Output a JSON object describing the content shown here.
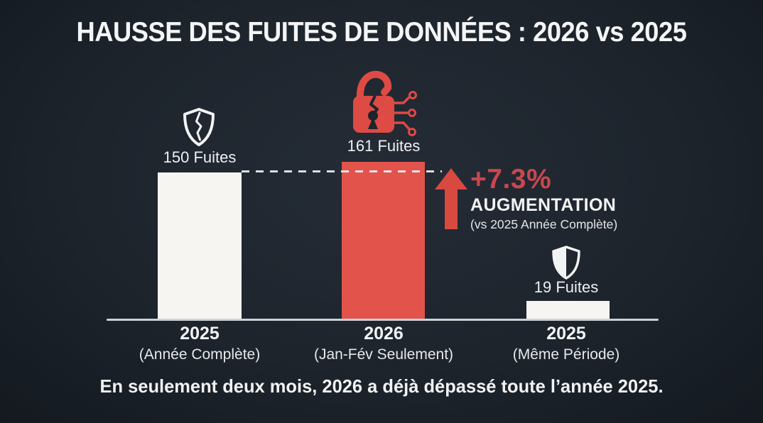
{
  "title": "HAUSSE DES FUITES DE DONNÉES : 2026 vs 2025",
  "caption": "En seulement deux mois, 2026 a déjà dépassé toute l’année 2025.",
  "colors": {
    "background": "#1d242c",
    "bar_white": "#f6f5f2",
    "bar_red": "#e2534b",
    "accent_red": "#c9474d",
    "text": "#eef0f2",
    "baseline": "#ced2d6"
  },
  "chart_data": {
    "type": "bar",
    "title": "HAUSSE DES FUITES DE DONNÉES : 2026 vs 2025",
    "categories": [
      "2025 (Année Complète)",
      "2026 (Jan-Fév Seulement)",
      "2025 (Même Période)"
    ],
    "values": [
      150,
      161,
      19
    ],
    "value_labels": [
      "150 Fuites",
      "161 Fuites",
      "19 Fuites"
    ],
    "bar_colors": [
      "#f6f5f2",
      "#e2534b",
      "#f6f5f2"
    ],
    "ylabel": "Fuites",
    "xlabel": "",
    "ylim": [
      0,
      165
    ],
    "grid": false,
    "legend": false,
    "reference_line": {
      "value": 150,
      "style": "dashed",
      "color": "#eceeef"
    },
    "annotation": {
      "percent": "+7.3%",
      "label": "AUGMENTATION",
      "note": "(vs 2025 Année Complète)"
    },
    "icons": [
      "broken-shield",
      "hacked-padlock",
      "half-shield"
    ]
  },
  "bars": [
    {
      "value_label": "150 Fuites",
      "year": "2025",
      "period": "(Année Complète)"
    },
    {
      "value_label": "161 Fuites",
      "year": "2026",
      "period": "(Jan-Fév Seulement)"
    },
    {
      "value_label": "19 Fuites",
      "year": "2025",
      "period": "(Même Période)"
    }
  ],
  "annotation": {
    "percent": "+7.3%",
    "label": "AUGMENTATION",
    "note": "(vs 2025 Année Complète)"
  }
}
